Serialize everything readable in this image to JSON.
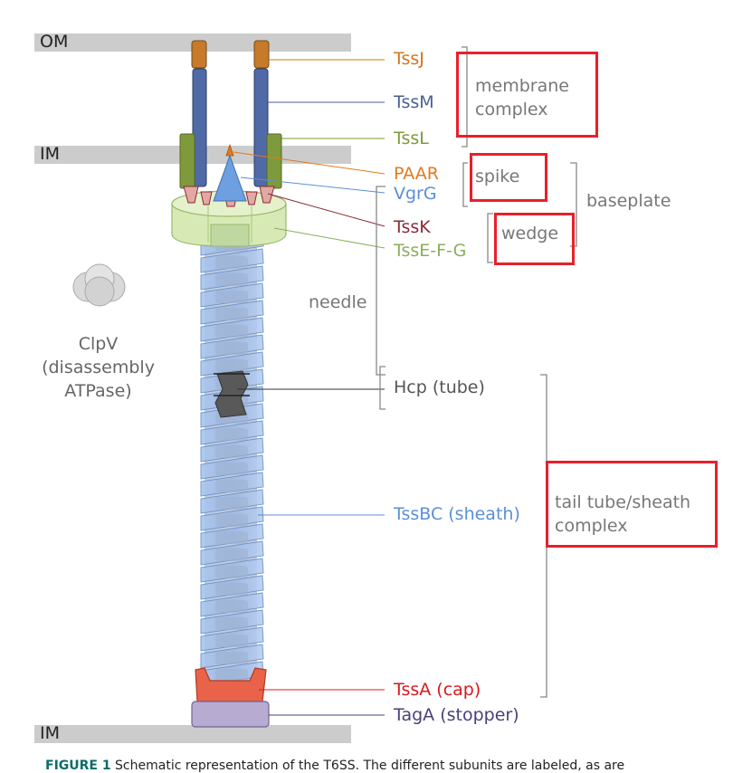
{
  "membranes": {
    "om": "OM",
    "im_top": "IM",
    "im_bottom": "IM"
  },
  "labels": {
    "tssj": "TssJ",
    "tssm": "TssM",
    "tssl": "TssL",
    "paar": "PAAR",
    "vgrg": "VgrG",
    "tssk": "TssK",
    "tssefg": "TssE-F-G",
    "hcp": "Hcp (tube)",
    "tssbc": "TssBC (sheath)",
    "tssa": "TssA (cap)",
    "taga": "TagA (stopper)"
  },
  "groups": {
    "membrane_complex_l1": "membrane",
    "membrane_complex_l2": "complex",
    "spike": "spike",
    "wedge": "wedge",
    "baseplate": "baseplate",
    "needle": "needle",
    "tail_l1": "tail tube/sheath",
    "tail_l2": "complex"
  },
  "clpv": {
    "line1": "ClpV",
    "line2": "(disassembly",
    "line3": "ATPase)"
  },
  "caption": {
    "title": "FIGURE 1",
    "text": "Schematic representation of the T6SS. The different subunits are labeled, as are"
  },
  "colors": {
    "tssj": "#d4741e",
    "tssm": "#4a5f93",
    "tssl": "#7d9a37",
    "paar": "#e07a1e",
    "vgrg": "#5b8fd6",
    "tssk": "#8b2a35",
    "tssefg": "#8aae5a",
    "tssbc": "#5b8fd6",
    "tssa": "#d8181f",
    "taga": "#4b3f7a",
    "highlight": "#e8202a"
  }
}
